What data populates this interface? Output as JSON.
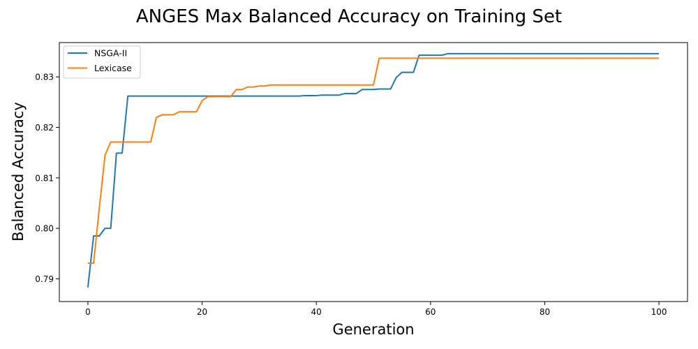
{
  "chart_data": {
    "type": "line",
    "title": "ANGES Max Balanced Accuracy on Training Set",
    "xlabel": "Generation",
    "ylabel": "Balanced Accuracy",
    "xlim": [
      -5,
      105
    ],
    "ylim": [
      0.7855,
      0.8368
    ],
    "xticks": [
      0,
      20,
      40,
      60,
      80,
      100
    ],
    "xtick_labels": [
      "0",
      "20",
      "40",
      "60",
      "80",
      "100"
    ],
    "yticks": [
      0.79,
      0.8,
      0.81,
      0.82,
      0.83
    ],
    "ytick_labels": [
      "0.79",
      "0.80",
      "0.81",
      "0.82",
      "0.83"
    ],
    "grid": false,
    "legend": "top-left",
    "series": [
      {
        "name": "NSGA-II",
        "color": "#1f77b4",
        "points": [
          [
            0,
            0.7883
          ],
          [
            1,
            0.7985
          ],
          [
            2,
            0.7985
          ],
          [
            3,
            0.8
          ],
          [
            4,
            0.8
          ],
          [
            5,
            0.8149
          ],
          [
            6,
            0.8149
          ],
          [
            7,
            0.8262
          ],
          [
            8,
            0.8262
          ],
          [
            9,
            0.8262
          ],
          [
            10,
            0.8262
          ],
          [
            11,
            0.8262
          ],
          [
            12,
            0.8262
          ],
          [
            13,
            0.8262
          ],
          [
            14,
            0.8262
          ],
          [
            15,
            0.8262
          ],
          [
            16,
            0.8262
          ],
          [
            17,
            0.8262
          ],
          [
            18,
            0.8262
          ],
          [
            19,
            0.8262
          ],
          [
            20,
            0.8262
          ],
          [
            21,
            0.8262
          ],
          [
            22,
            0.8262
          ],
          [
            23,
            0.8262
          ],
          [
            24,
            0.8262
          ],
          [
            25,
            0.8262
          ],
          [
            26,
            0.8262
          ],
          [
            27,
            0.8262
          ],
          [
            28,
            0.8262
          ],
          [
            29,
            0.8262
          ],
          [
            30,
            0.8262
          ],
          [
            31,
            0.8262
          ],
          [
            32,
            0.8262
          ],
          [
            33,
            0.8262
          ],
          [
            34,
            0.8262
          ],
          [
            35,
            0.8262
          ],
          [
            36,
            0.8262
          ],
          [
            37,
            0.8262
          ],
          [
            38,
            0.8263
          ],
          [
            39,
            0.8263
          ],
          [
            40,
            0.8263
          ],
          [
            41,
            0.8264
          ],
          [
            42,
            0.8264
          ],
          [
            43,
            0.8264
          ],
          [
            44,
            0.8264
          ],
          [
            45,
            0.8267
          ],
          [
            46,
            0.8267
          ],
          [
            47,
            0.8267
          ],
          [
            48,
            0.8275
          ],
          [
            49,
            0.8275
          ],
          [
            50,
            0.8275
          ],
          [
            51,
            0.8276
          ],
          [
            52,
            0.8276
          ],
          [
            53,
            0.8276
          ],
          [
            54,
            0.8299
          ],
          [
            55,
            0.8309
          ],
          [
            56,
            0.8309
          ],
          [
            57,
            0.8309
          ],
          [
            58,
            0.8343
          ],
          [
            59,
            0.8343
          ],
          [
            60,
            0.8343
          ],
          [
            61,
            0.8343
          ],
          [
            62,
            0.8343
          ],
          [
            63,
            0.8346
          ],
          [
            64,
            0.8346
          ],
          [
            65,
            0.8346
          ],
          [
            70,
            0.8346
          ],
          [
            80,
            0.8346
          ],
          [
            90,
            0.8346
          ],
          [
            100,
            0.8346
          ]
        ]
      },
      {
        "name": "Lexicase",
        "color": "#ff7f0e",
        "points": [
          [
            0,
            0.7931
          ],
          [
            1,
            0.7931
          ],
          [
            2,
            0.804
          ],
          [
            3,
            0.8145
          ],
          [
            4,
            0.8171
          ],
          [
            5,
            0.8171
          ],
          [
            6,
            0.8171
          ],
          [
            7,
            0.8171
          ],
          [
            8,
            0.8171
          ],
          [
            9,
            0.8171
          ],
          [
            10,
            0.8171
          ],
          [
            11,
            0.8171
          ],
          [
            12,
            0.822
          ],
          [
            13,
            0.8225
          ],
          [
            14,
            0.8225
          ],
          [
            15,
            0.8225
          ],
          [
            16,
            0.8231
          ],
          [
            17,
            0.8231
          ],
          [
            18,
            0.8231
          ],
          [
            19,
            0.8231
          ],
          [
            20,
            0.8253
          ],
          [
            21,
            0.8261
          ],
          [
            22,
            0.8261
          ],
          [
            23,
            0.8261
          ],
          [
            24,
            0.8261
          ],
          [
            25,
            0.8261
          ],
          [
            26,
            0.8275
          ],
          [
            27,
            0.8275
          ],
          [
            28,
            0.828
          ],
          [
            29,
            0.828
          ],
          [
            30,
            0.8282
          ],
          [
            31,
            0.8282
          ],
          [
            32,
            0.8284
          ],
          [
            33,
            0.8284
          ],
          [
            34,
            0.8284
          ],
          [
            35,
            0.8284
          ],
          [
            40,
            0.8284
          ],
          [
            45,
            0.8284
          ],
          [
            50,
            0.8284
          ],
          [
            51,
            0.8337
          ],
          [
            52,
            0.8337
          ],
          [
            55,
            0.8337
          ],
          [
            60,
            0.8337
          ],
          [
            70,
            0.8337
          ],
          [
            80,
            0.8337
          ],
          [
            90,
            0.8337
          ],
          [
            100,
            0.8337
          ]
        ]
      }
    ]
  }
}
